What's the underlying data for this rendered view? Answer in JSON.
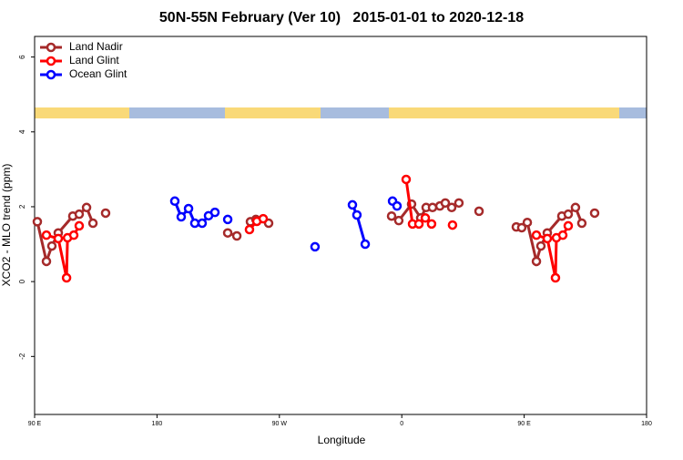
{
  "chart_data": {
    "type": "line",
    "title": "50N-55N February (Ver 10)   2015-01-01 to 2020-12-18",
    "x_label": "Longitude",
    "y_label": "XCO2 - MLO trend (ppm)",
    "xlim": [
      90,
      540
    ],
    "xticks": [
      {
        "value": 90,
        "label": "90 E"
      },
      {
        "value": 180,
        "label": "180"
      },
      {
        "value": 270,
        "label": "90 W"
      },
      {
        "value": 360,
        "label": "0"
      },
      {
        "value": 450,
        "label": "90 E"
      },
      {
        "value": 540,
        "label": "180"
      }
    ],
    "ylim": [
      -3.55,
      6.55
    ],
    "yticks": [
      -2,
      0,
      2,
      4,
      6
    ],
    "legend": "top-left",
    "series": [
      {
        "name": "Land Nadir",
        "color": "#a52a2a",
        "x": [
          92.0,
          98.7,
          102.7,
          107.4,
          118.1,
          122.8,
          128.2,
          132.9,
          null,
          142.2,
          null,
          232.0,
          238.7,
          null,
          248.7,
          252.7,
          262.1,
          null,
          352.5,
          357.8,
          367.2,
          373.9,
          377.9,
          382.6,
          388.0,
          392.0,
          396.7,
          402.0,
          null,
          416.8,
          null,
          444.2,
          448.2,
          452.3,
          459.0,
          462.3,
          467.0,
          477.7,
          482.4,
          487.7,
          492.4,
          null,
          501.8
        ],
        "values": [
          1.6,
          0.54,
          0.95,
          1.3,
          1.75,
          1.8,
          1.98,
          1.56,
          null,
          1.83,
          null,
          1.3,
          1.22,
          null,
          1.6,
          1.66,
          1.56,
          null,
          1.75,
          1.63,
          2.07,
          1.7,
          1.98,
          1.98,
          2.02,
          2.1,
          1.98,
          2.1,
          null,
          1.88,
          null,
          1.46,
          1.44,
          1.58,
          0.54,
          0.95,
          1.3,
          1.75,
          1.8,
          1.98,
          1.56,
          null,
          1.83
        ]
      },
      {
        "name": "Land Glint",
        "color": "#ff0000",
        "x": [
          98.7,
          107.4,
          113.5,
          114.2,
          118.8,
          122.8,
          null,
          248.0,
          253.4,
          258.1,
          null,
          363.2,
          367.9,
          372.6,
          377.3,
          381.9,
          null,
          397.3,
          null,
          459.0,
          467.0,
          473.0,
          473.7,
          478.4,
          482.4
        ],
        "values": [
          1.24,
          1.15,
          0.1,
          1.17,
          1.24,
          1.49,
          null,
          1.39,
          1.61,
          1.68,
          null,
          2.73,
          1.54,
          1.54,
          1.7,
          1.54,
          null,
          1.51,
          null,
          1.24,
          1.15,
          0.1,
          1.17,
          1.24,
          1.49
        ]
      },
      {
        "name": "Ocean Glint",
        "color": "#0000ff",
        "x": [
          193.1,
          197.8,
          203.2,
          207.8,
          213.2,
          217.9,
          222.6,
          null,
          232.0,
          null,
          296.2,
          null,
          323.7,
          327.0,
          333.1,
          null,
          353.2,
          356.5
        ],
        "values": [
          2.15,
          1.73,
          1.95,
          1.56,
          1.56,
          1.76,
          1.85,
          null,
          1.66,
          null,
          0.93,
          null,
          2.05,
          1.78,
          1.0,
          null,
          2.15,
          2.02
        ]
      }
    ]
  }
}
